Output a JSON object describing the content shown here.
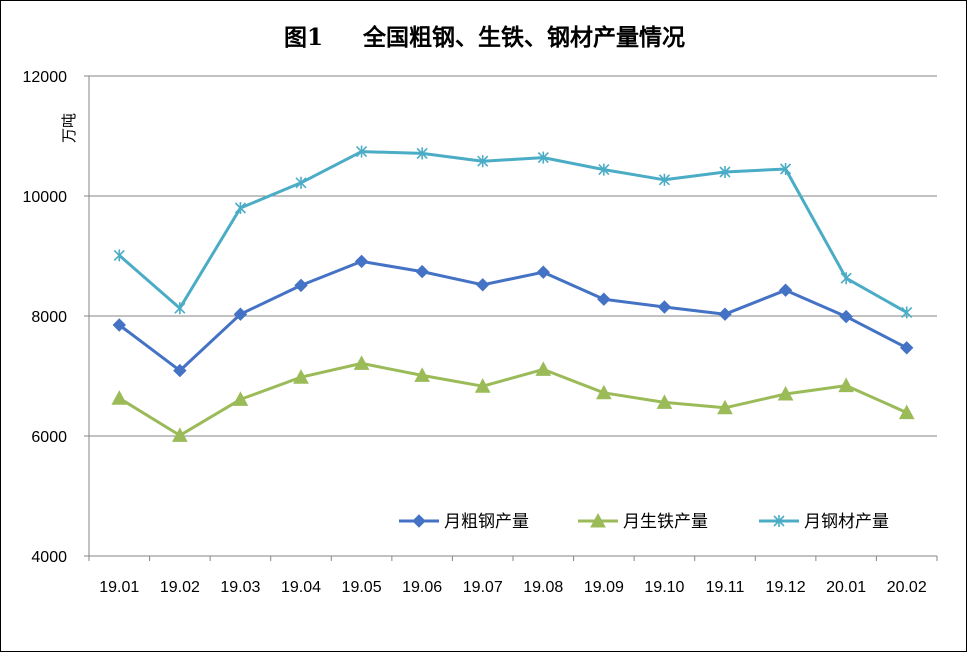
{
  "chart_data": {
    "type": "line",
    "title": "图1     全国粗钢、生铁、钢材产量情况",
    "ylabel": "万吨",
    "xlabel": "",
    "ylim": [
      4000,
      12000
    ],
    "yticks": [
      4000,
      6000,
      8000,
      10000,
      12000
    ],
    "grid": true,
    "legend_position": "bottom-right",
    "categories": [
      "19.01",
      "19.02",
      "19.03",
      "19.04",
      "19.05",
      "19.06",
      "19.07",
      "19.08",
      "19.09",
      "19.10",
      "19.11",
      "19.12",
      "20.01",
      "20.02"
    ],
    "series": [
      {
        "name": "月粗钢产量",
        "color": "#4472C4",
        "marker": "diamond",
        "values": [
          7850,
          7090,
          8030,
          8510,
          8910,
          8740,
          8520,
          8730,
          8280,
          8150,
          8030,
          8430,
          7990,
          7470
        ]
      },
      {
        "name": "月生铁产量",
        "color": "#9BBB59",
        "marker": "triangle",
        "values": [
          6630,
          6010,
          6610,
          6980,
          7210,
          7010,
          6830,
          7110,
          6720,
          6560,
          6470,
          6700,
          6840,
          6390
        ]
      },
      {
        "name": "月钢材产量",
        "color": "#4BACC6",
        "marker": "star",
        "values": [
          9010,
          8130,
          9800,
          10220,
          10740,
          10710,
          10580,
          10640,
          10440,
          10270,
          10400,
          10450,
          8630,
          8060
        ]
      }
    ]
  }
}
